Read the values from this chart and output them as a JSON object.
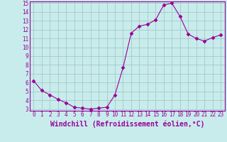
{
  "x": [
    0,
    1,
    2,
    3,
    4,
    5,
    6,
    7,
    8,
    9,
    10,
    11,
    12,
    13,
    14,
    15,
    16,
    17,
    18,
    19,
    20,
    21,
    22,
    23
  ],
  "y": [
    6.2,
    5.1,
    4.6,
    4.1,
    3.7,
    3.2,
    3.1,
    3.0,
    3.1,
    3.2,
    4.6,
    7.7,
    11.6,
    12.4,
    12.6,
    13.1,
    14.8,
    15.0,
    13.5,
    11.5,
    11.0,
    10.7,
    11.1,
    11.4
  ],
  "line_color": "#990099",
  "marker": "D",
  "marker_size": 2.5,
  "bg_color": "#c8ecec",
  "grid_color": "#aacccc",
  "xlabel": "Windchill (Refroidissement éolien,°C)",
  "ylim": [
    3,
    15
  ],
  "xlim": [
    -0.5,
    23.5
  ],
  "yticks": [
    3,
    4,
    5,
    6,
    7,
    8,
    9,
    10,
    11,
    12,
    13,
    14,
    15
  ],
  "xticks": [
    0,
    1,
    2,
    3,
    4,
    5,
    6,
    7,
    8,
    9,
    10,
    11,
    12,
    13,
    14,
    15,
    16,
    17,
    18,
    19,
    20,
    21,
    22,
    23
  ],
  "tick_color": "#990099",
  "label_color": "#990099",
  "font_size": 5.5,
  "xlabel_fontsize": 7.0,
  "linewidth": 0.8
}
